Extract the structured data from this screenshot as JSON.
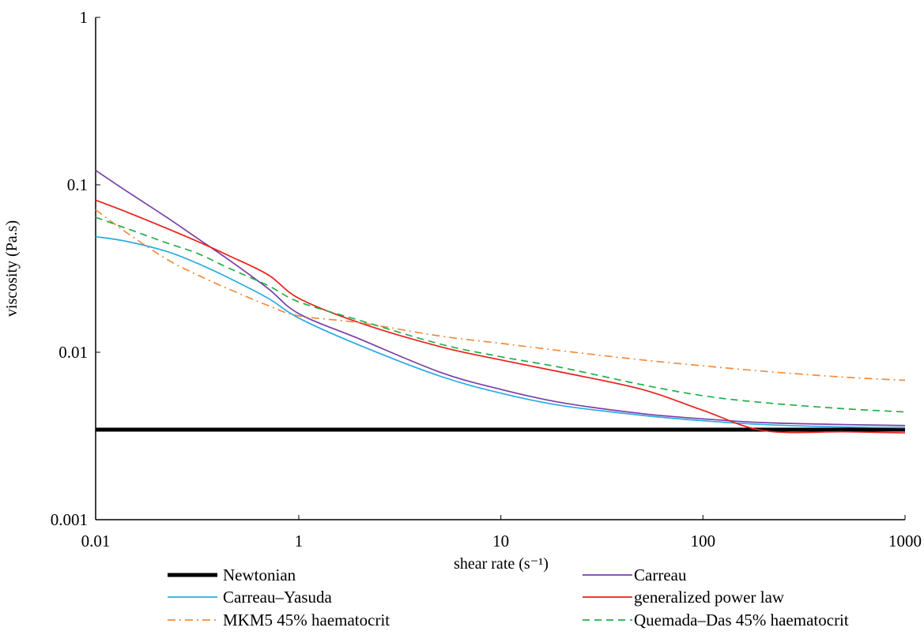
{
  "chart_data": {
    "type": "line",
    "title": "",
    "xlabel": "shear rate (s⁻¹)",
    "ylabel": "viscosity (Pa.s)",
    "xscale": "log",
    "yscale": "log",
    "xlim": [
      0.01,
      1000
    ],
    "ylim": [
      0.001,
      1
    ],
    "x_ticks": [
      "0.01",
      "1",
      "10",
      "100",
      "1000"
    ],
    "x_tick_values": [
      0.01,
      1,
      10,
      100,
      1000
    ],
    "y_ticks": [
      "1",
      "0.1",
      "0.01",
      "0.001"
    ],
    "y_tick_values": [
      1,
      0.1,
      0.01,
      0.001
    ],
    "grid": false,
    "legend_position": "bottom",
    "x": [
      0.01,
      0.02,
      0.05,
      0.1,
      0.2,
      0.5,
      1,
      2,
      5,
      10,
      20,
      50,
      100,
      200,
      500,
      1000
    ],
    "series": [
      {
        "name": "Newtonian",
        "color": "#000000",
        "style": "solid-thick",
        "values": [
          0.00345,
          0.00345,
          0.00345,
          0.00345,
          0.00345,
          0.00345,
          0.00345,
          0.00345,
          0.00345,
          0.00345,
          0.00345,
          0.00345,
          0.00345,
          0.00345,
          0.00345,
          0.00345
        ]
      },
      {
        "name": "Carreau",
        "color": "#7b3fa6",
        "style": "solid",
        "values": [
          0.122,
          0.092,
          0.064,
          0.048,
          0.036,
          0.024,
          0.017,
          0.012,
          0.0076,
          0.006,
          0.005,
          0.0043,
          0.004,
          0.0038,
          0.0037,
          0.00365
        ]
      },
      {
        "name": "Carreau–Yasuda",
        "color": "#29abe2",
        "style": "solid",
        "values": [
          0.049,
          0.046,
          0.04,
          0.034,
          0.028,
          0.021,
          0.016,
          0.011,
          0.0072,
          0.0057,
          0.0048,
          0.0042,
          0.0039,
          0.0037,
          0.00358,
          0.00355
        ]
      },
      {
        "name": "generalized power law",
        "color": "#e8211c",
        "style": "solid",
        "values": [
          0.081,
          0.069,
          0.055,
          0.046,
          0.038,
          0.029,
          0.021,
          0.015,
          0.0108,
          0.009,
          0.0076,
          0.006,
          0.0045,
          0.0034,
          0.00335,
          0.0033
        ]
      },
      {
        "name": "MKM5 45% haematocrit",
        "color": "#f28c3c",
        "style": "dash-dot",
        "values": [
          0.071,
          0.052,
          0.036,
          0.029,
          0.024,
          0.019,
          0.0165,
          0.015,
          0.0125,
          0.0113,
          0.0102,
          0.009,
          0.0083,
          0.0077,
          0.0071,
          0.0068
        ]
      },
      {
        "name": "Quemada–Das 45% haematocrit",
        "color": "#22b04b",
        "style": "dashed",
        "values": [
          0.064,
          0.055,
          0.045,
          0.039,
          0.032,
          0.025,
          0.02,
          0.0155,
          0.0112,
          0.0094,
          0.0081,
          0.0064,
          0.0055,
          0.005,
          0.0046,
          0.0044
        ]
      }
    ]
  }
}
